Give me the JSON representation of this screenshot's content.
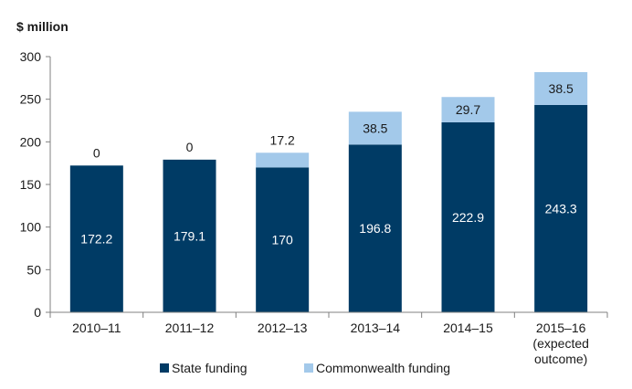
{
  "chart_data": {
    "type": "bar",
    "stacked": true,
    "ylabel": "$ million",
    "ylim": [
      0,
      300
    ],
    "yticks": [
      0,
      50,
      100,
      150,
      200,
      250,
      300
    ],
    "grid": false,
    "legend_position": "bottom",
    "categories": [
      [
        "2010–11"
      ],
      [
        "2011–12"
      ],
      [
        "2012–13"
      ],
      [
        "2013–14"
      ],
      [
        "2014–15"
      ],
      [
        "2015–16",
        "(expected",
        "outcome)"
      ]
    ],
    "series": [
      {
        "name": "State funding",
        "color": "#003b65",
        "values": [
          172.2,
          179.1,
          170,
          196.8,
          222.9,
          243.3
        ]
      },
      {
        "name": "Commonwealth funding",
        "color": "#a3c9ea",
        "values": [
          0,
          0,
          17.2,
          38.5,
          29.7,
          38.5
        ]
      }
    ],
    "state_labels": [
      "172.2",
      "179.1",
      "170",
      "196.8",
      "222.9",
      "243.3"
    ],
    "commonwealth_labels": [
      "0",
      "0",
      "17.2",
      "38.5",
      "29.7",
      "38.5"
    ]
  }
}
